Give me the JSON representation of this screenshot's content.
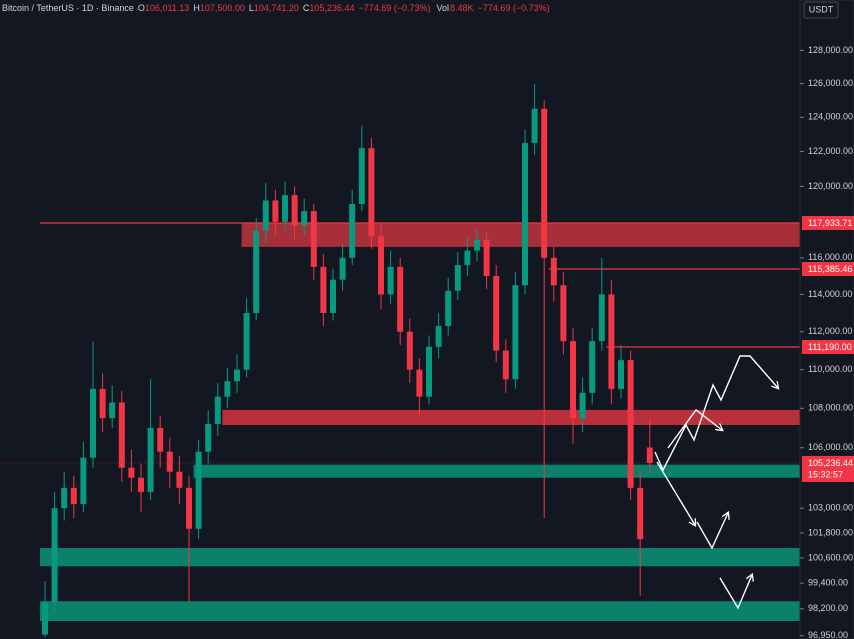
{
  "chart_data": {
    "type": "candlestick",
    "header": {
      "symbol": "Bitcoin / TetherUS · 1D · Binance",
      "fields": [
        {
          "label": "O",
          "value": "106,011.13"
        },
        {
          "label": "H",
          "value": "107,500.00"
        },
        {
          "label": "L",
          "value": "104,741.20"
        },
        {
          "label": "C",
          "value": "105,236.44"
        }
      ],
      "change": "−774.69 (−0.73%)",
      "volume_label": "Vol",
      "volume": "8.48K",
      "volume_change": "−774.69 (−0.73%)"
    },
    "currency": "USDT",
    "log_scale": true,
    "grid": false,
    "up_color": "#089981",
    "down_color": "#f23645",
    "ylim": [
      96800,
      131100
    ],
    "yticks": [
      {
        "value": 128000,
        "label": "128,000.00"
      },
      {
        "value": 126000,
        "label": "126,000.00"
      },
      {
        "value": 124000,
        "label": "124,000.00"
      },
      {
        "value": 122000,
        "label": "122,000.00"
      },
      {
        "value": 120000,
        "label": "120,000.00"
      },
      {
        "value": 116000,
        "label": "116,000.00"
      },
      {
        "value": 114000,
        "label": "114,000.00"
      },
      {
        "value": 112000,
        "label": "112,000.00"
      },
      {
        "value": 110000,
        "label": "110,000.00"
      },
      {
        "value": 108000,
        "label": "108,000.00"
      },
      {
        "value": 106000,
        "label": "106,000.00"
      },
      {
        "value": 103000,
        "label": "103,000.00"
      },
      {
        "value": 101800,
        "label": "101,800.00"
      },
      {
        "value": 100600,
        "label": "100,600.00"
      },
      {
        "value": 99400,
        "label": "99,400.00"
      },
      {
        "value": 98200,
        "label": "98,200.00"
      },
      {
        "value": 96950,
        "label": "96,950.00"
      }
    ],
    "ohlc": [
      [
        97000,
        99500,
        96900,
        98500
      ],
      [
        98500,
        103800,
        98000,
        103000
      ],
      [
        103000,
        104800,
        102400,
        104000
      ],
      [
        104000,
        104600,
        102500,
        103200
      ],
      [
        103200,
        106300,
        102800,
        105500
      ],
      [
        105500,
        111500,
        105000,
        109000
      ],
      [
        109000,
        109800,
        106800,
        107500
      ],
      [
        107500,
        109200,
        107000,
        108300
      ],
      [
        108300,
        108900,
        104300,
        105000
      ],
      [
        105000,
        105900,
        103800,
        104500
      ],
      [
        104500,
        105200,
        102800,
        103800
      ],
      [
        103800,
        109500,
        103400,
        107000
      ],
      [
        107000,
        107600,
        105000,
        105800
      ],
      [
        105800,
        106500,
        104000,
        104800
      ],
      [
        104800,
        105600,
        103200,
        104000
      ],
      [
        104000,
        104600,
        98500,
        102000
      ],
      [
        102000,
        106400,
        101500,
        105800
      ],
      [
        105800,
        107900,
        105200,
        107200
      ],
      [
        107200,
        109300,
        106600,
        108600
      ],
      [
        108600,
        110100,
        108000,
        109400
      ],
      [
        109400,
        110800,
        108800,
        110000
      ],
      [
        110000,
        113800,
        109600,
        113000
      ],
      [
        113000,
        118200,
        112600,
        117500
      ],
      [
        117500,
        120200,
        116800,
        119200
      ],
      [
        119200,
        119800,
        117200,
        118000
      ],
      [
        118000,
        120300,
        117500,
        119500
      ],
      [
        119500,
        120000,
        117000,
        117800
      ],
      [
        117800,
        119300,
        117200,
        118600
      ],
      [
        118600,
        119000,
        114800,
        115500
      ],
      [
        115500,
        116200,
        112300,
        113000
      ],
      [
        113000,
        115400,
        112600,
        114800
      ],
      [
        114800,
        116800,
        114200,
        116000
      ],
      [
        116000,
        119800,
        115600,
        119000
      ],
      [
        119000,
        123500,
        118600,
        122200
      ],
      [
        122200,
        122800,
        116500,
        117200
      ],
      [
        117200,
        117900,
        113200,
        114000
      ],
      [
        114000,
        116400,
        113500,
        115500
      ],
      [
        115500,
        116000,
        111300,
        112000
      ],
      [
        112000,
        112700,
        109300,
        110000
      ],
      [
        110000,
        110600,
        107600,
        108600
      ],
      [
        108600,
        111800,
        108200,
        111200
      ],
      [
        111200,
        113000,
        110600,
        112300
      ],
      [
        112300,
        114900,
        111800,
        114200
      ],
      [
        114200,
        116300,
        113700,
        115600
      ],
      [
        115600,
        117100,
        115000,
        116400
      ],
      [
        116400,
        117600,
        115800,
        117000
      ],
      [
        117000,
        117400,
        114300,
        115000
      ],
      [
        115000,
        115600,
        110400,
        111000
      ],
      [
        111000,
        111600,
        108800,
        109500
      ],
      [
        109500,
        115200,
        109000,
        114500
      ],
      [
        114500,
        123300,
        114000,
        122500
      ],
      [
        122500,
        126000,
        121800,
        124500
      ],
      [
        124500,
        125000,
        102500,
        116000
      ],
      [
        116000,
        116600,
        113600,
        114500
      ],
      [
        114500,
        115200,
        110800,
        111500
      ],
      [
        111500,
        112200,
        106200,
        107500
      ],
      [
        107500,
        109600,
        106800,
        108800
      ],
      [
        108800,
        112200,
        108200,
        111500
      ],
      [
        111500,
        116000,
        111000,
        114000
      ],
      [
        114000,
        114800,
        108200,
        109000
      ],
      [
        109000,
        111300,
        108500,
        110500
      ],
      [
        110500,
        111000,
        103400,
        104000
      ],
      [
        104000,
        104800,
        98800,
        101500
      ],
      [
        106011.13,
        107500,
        104741.2,
        105236.44
      ]
    ],
    "zones": [
      {
        "low": 116600,
        "high": 117930,
        "color": "#b3323c",
        "start": 21
      },
      {
        "low": 107150,
        "high": 107920,
        "color": "#c8333d",
        "start": 19
      },
      {
        "low": 104500,
        "high": 105150,
        "color": "#0b8a72",
        "start": 16
      },
      {
        "low": 100200,
        "high": 101070,
        "color": "#0b8a72",
        "start": 0
      },
      {
        "low": 97630,
        "high": 98550,
        "color": "#0b8a72",
        "start": 0
      }
    ],
    "levels": [
      {
        "value": 117933.71,
        "label": "117,933.71",
        "start": 0
      },
      {
        "value": 115385.46,
        "label": "115,385.46",
        "start": 53
      },
      {
        "value": 111190,
        "label": "111,190.00",
        "start": 59
      }
    ],
    "last_price": {
      "value": 105236.44,
      "label": "105,236.44",
      "countdown": "15:32:57"
    }
  }
}
